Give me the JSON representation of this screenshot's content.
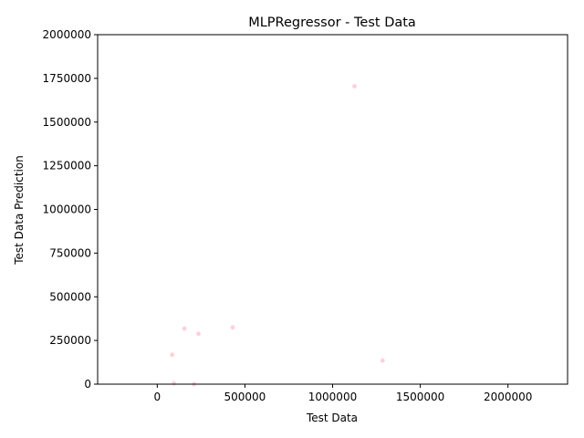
{
  "chart_data": {
    "type": "scatter",
    "title": "MLPRegressor - Test Data",
    "xlabel": "Test Data",
    "ylabel": "Test Data Prediction",
    "xlim": [
      -340000,
      2340000
    ],
    "ylim": [
      0,
      2000000
    ],
    "xticks": [
      0,
      500000,
      1000000,
      1500000,
      2000000
    ],
    "xtick_labels": [
      "0",
      "500000",
      "1000000",
      "1500000",
      "2000000"
    ],
    "yticks": [
      0,
      250000,
      500000,
      750000,
      1000000,
      1250000,
      1500000,
      1750000,
      2000000
    ],
    "ytick_labels": [
      "0",
      "250000",
      "500000",
      "750000",
      "1000000",
      "1250000",
      "1500000",
      "1750000",
      "2000000"
    ],
    "grid": false,
    "marker_color": "#ffc0cb",
    "points": [
      {
        "x": 1125000,
        "y": 1705000
      },
      {
        "x": 430000,
        "y": 325000
      },
      {
        "x": 155000,
        "y": 318000
      },
      {
        "x": 235000,
        "y": 288000
      },
      {
        "x": 85000,
        "y": 168000
      },
      {
        "x": 1285000,
        "y": 135000
      },
      {
        "x": 95000,
        "y": 5000
      },
      {
        "x": 210000,
        "y": 0
      }
    ]
  }
}
